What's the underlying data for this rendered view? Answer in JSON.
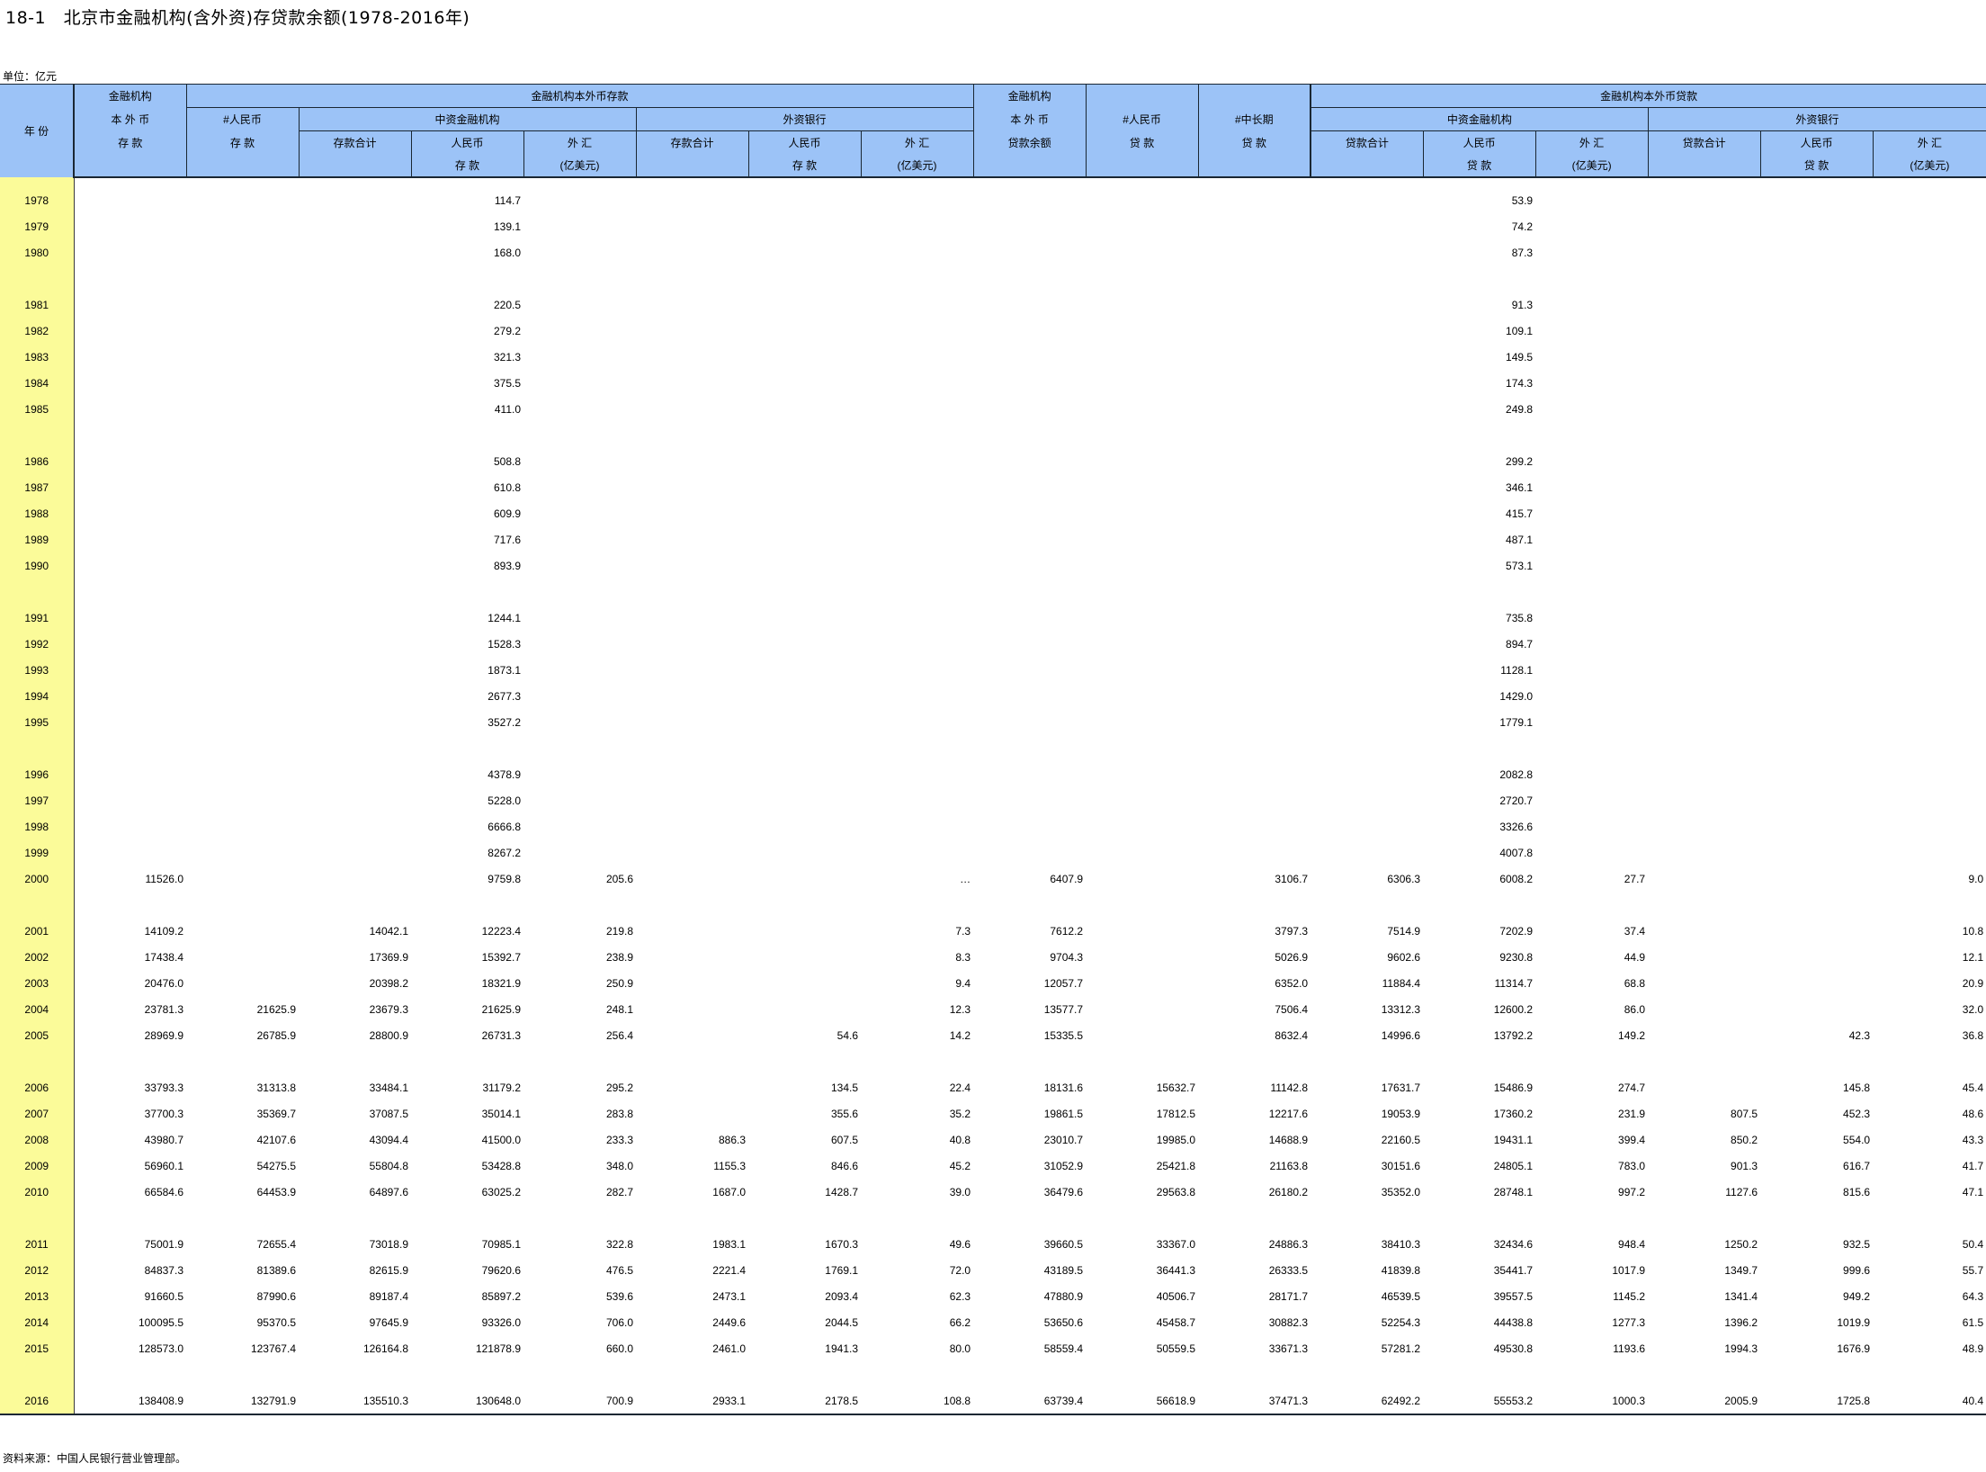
{
  "title": "18-1　北京市金融机构(含外资)存贷款余额(1978-2016年)",
  "unit": "单位：亿元",
  "source": "资料来源：中国人民银行营业管理部。",
  "header": {
    "year": "年 份",
    "dep_fin_1": "金融机构",
    "dep_fin_2": "本 外 币",
    "dep_fin_3": "存 款",
    "dep_group": "金融机构本外币存款",
    "dep_rmb_1": "#人民币",
    "dep_rmb_2": "存 款",
    "dep_domestic": "中资金融机构",
    "dep_foreign": "外资银行",
    "dep_total": "存款合计",
    "dep_rmb_dep_1": "人民币",
    "dep_rmb_dep_2": "存 款",
    "dep_fx_1": "外 汇",
    "dep_fx_2": "(亿美元)",
    "dep_f_total": "存款合计",
    "dep_f_rmb_1": "人民币",
    "dep_f_rmb_2": "存 款",
    "dep_f_fx_1": "外 汇",
    "dep_f_fx_2": "(亿美元)",
    "loan_fin_1": "金融机构",
    "loan_fin_2": "本 外 币",
    "loan_fin_3": "贷款余额",
    "loan_rmb_1": "#人民币",
    "loan_rmb_2": "贷 款",
    "loan_mid_1": "#中长期",
    "loan_mid_2": "贷 款",
    "loan_group": "金融机构本外币贷款",
    "loan_domestic": "中资金融机构",
    "loan_foreign": "外资银行",
    "loan_total": "贷款合计",
    "loan_rmb_loan_1": "人民币",
    "loan_rmb_loan_2": "贷 款",
    "loan_fx_1": "外 汇",
    "loan_fx_2": "(亿美元)",
    "loan_f_total": "贷款合计",
    "loan_f_rmb_1": "人民币",
    "loan_f_rmb_2": "贷 款",
    "loan_f_fx_1": "外 汇",
    "loan_f_fx_2": "(亿美元)"
  },
  "rows": [
    [
      "1978",
      "",
      "",
      "",
      "114.7",
      "",
      "",
      "",
      "",
      "",
      "",
      "",
      "",
      "53.9",
      "",
      "",
      "",
      ""
    ],
    [
      "1979",
      "",
      "",
      "",
      "139.1",
      "",
      "",
      "",
      "",
      "",
      "",
      "",
      "",
      "74.2",
      "",
      "",
      "",
      ""
    ],
    [
      "1980",
      "",
      "",
      "",
      "168.0",
      "",
      "",
      "",
      "",
      "",
      "",
      "",
      "",
      "87.3",
      "",
      "",
      "",
      ""
    ],
    [
      "1981",
      "",
      "",
      "",
      "220.5",
      "",
      "",
      "",
      "",
      "",
      "",
      "",
      "",
      "91.3",
      "",
      "",
      "",
      ""
    ],
    [
      "1982",
      "",
      "",
      "",
      "279.2",
      "",
      "",
      "",
      "",
      "",
      "",
      "",
      "",
      "109.1",
      "",
      "",
      "",
      ""
    ],
    [
      "1983",
      "",
      "",
      "",
      "321.3",
      "",
      "",
      "",
      "",
      "",
      "",
      "",
      "",
      "149.5",
      "",
      "",
      "",
      ""
    ],
    [
      "1984",
      "",
      "",
      "",
      "375.5",
      "",
      "",
      "",
      "",
      "",
      "",
      "",
      "",
      "174.3",
      "",
      "",
      "",
      ""
    ],
    [
      "1985",
      "",
      "",
      "",
      "411.0",
      "",
      "",
      "",
      "",
      "",
      "",
      "",
      "",
      "249.8",
      "",
      "",
      "",
      ""
    ],
    [
      "1986",
      "",
      "",
      "",
      "508.8",
      "",
      "",
      "",
      "",
      "",
      "",
      "",
      "",
      "299.2",
      "",
      "",
      "",
      ""
    ],
    [
      "1987",
      "",
      "",
      "",
      "610.8",
      "",
      "",
      "",
      "",
      "",
      "",
      "",
      "",
      "346.1",
      "",
      "",
      "",
      ""
    ],
    [
      "1988",
      "",
      "",
      "",
      "609.9",
      "",
      "",
      "",
      "",
      "",
      "",
      "",
      "",
      "415.7",
      "",
      "",
      "",
      ""
    ],
    [
      "1989",
      "",
      "",
      "",
      "717.6",
      "",
      "",
      "",
      "",
      "",
      "",
      "",
      "",
      "487.1",
      "",
      "",
      "",
      ""
    ],
    [
      "1990",
      "",
      "",
      "",
      "893.9",
      "",
      "",
      "",
      "",
      "",
      "",
      "",
      "",
      "573.1",
      "",
      "",
      "",
      ""
    ],
    [
      "1991",
      "",
      "",
      "",
      "1244.1",
      "",
      "",
      "",
      "",
      "",
      "",
      "",
      "",
      "735.8",
      "",
      "",
      "",
      ""
    ],
    [
      "1992",
      "",
      "",
      "",
      "1528.3",
      "",
      "",
      "",
      "",
      "",
      "",
      "",
      "",
      "894.7",
      "",
      "",
      "",
      ""
    ],
    [
      "1993",
      "",
      "",
      "",
      "1873.1",
      "",
      "",
      "",
      "",
      "",
      "",
      "",
      "",
      "1128.1",
      "",
      "",
      "",
      ""
    ],
    [
      "1994",
      "",
      "",
      "",
      "2677.3",
      "",
      "",
      "",
      "",
      "",
      "",
      "",
      "",
      "1429.0",
      "",
      "",
      "",
      ""
    ],
    [
      "1995",
      "",
      "",
      "",
      "3527.2",
      "",
      "",
      "",
      "",
      "",
      "",
      "",
      "",
      "1779.1",
      "",
      "",
      "",
      ""
    ],
    [
      "1996",
      "",
      "",
      "",
      "4378.9",
      "",
      "",
      "",
      "",
      "",
      "",
      "",
      "",
      "2082.8",
      "",
      "",
      "",
      ""
    ],
    [
      "1997",
      "",
      "",
      "",
      "5228.0",
      "",
      "",
      "",
      "",
      "",
      "",
      "",
      "",
      "2720.7",
      "",
      "",
      "",
      ""
    ],
    [
      "1998",
      "",
      "",
      "",
      "6666.8",
      "",
      "",
      "",
      "",
      "",
      "",
      "",
      "",
      "3326.6",
      "",
      "",
      "",
      ""
    ],
    [
      "1999",
      "",
      "",
      "",
      "8267.2",
      "",
      "",
      "",
      "",
      "",
      "",
      "",
      "",
      "4007.8",
      "",
      "",
      "",
      ""
    ],
    [
      "2000",
      "11526.0",
      "",
      "",
      "9759.8",
      "205.6",
      "",
      "",
      "…",
      "6407.9",
      "",
      "3106.7",
      "6306.3",
      "6008.2",
      "27.7",
      "",
      "",
      "9.0"
    ],
    [
      "2001",
      "14109.2",
      "",
      "14042.1",
      "12223.4",
      "219.8",
      "",
      "",
      "7.3",
      "7612.2",
      "",
      "3797.3",
      "7514.9",
      "7202.9",
      "37.4",
      "",
      "",
      "10.8"
    ],
    [
      "2002",
      "17438.4",
      "",
      "17369.9",
      "15392.7",
      "238.9",
      "",
      "",
      "8.3",
      "9704.3",
      "",
      "5026.9",
      "9602.6",
      "9230.8",
      "44.9",
      "",
      "",
      "12.1"
    ],
    [
      "2003",
      "20476.0",
      "",
      "20398.2",
      "18321.9",
      "250.9",
      "",
      "",
      "9.4",
      "12057.7",
      "",
      "6352.0",
      "11884.4",
      "11314.7",
      "68.8",
      "",
      "",
      "20.9"
    ],
    [
      "2004",
      "23781.3",
      "21625.9",
      "23679.3",
      "21625.9",
      "248.1",
      "",
      "",
      "12.3",
      "13577.7",
      "",
      "7506.4",
      "13312.3",
      "12600.2",
      "86.0",
      "",
      "",
      "32.0"
    ],
    [
      "2005",
      "28969.9",
      "26785.9",
      "28800.9",
      "26731.3",
      "256.4",
      "",
      "54.6",
      "14.2",
      "15335.5",
      "",
      "8632.4",
      "14996.6",
      "13792.2",
      "149.2",
      "",
      "42.3",
      "36.8"
    ],
    [
      "2006",
      "33793.3",
      "31313.8",
      "33484.1",
      "31179.2",
      "295.2",
      "",
      "134.5",
      "22.4",
      "18131.6",
      "15632.7",
      "11142.8",
      "17631.7",
      "15486.9",
      "274.7",
      "",
      "145.8",
      "45.4"
    ],
    [
      "2007",
      "37700.3",
      "35369.7",
      "37087.5",
      "35014.1",
      "283.8",
      "",
      "355.6",
      "35.2",
      "19861.5",
      "17812.5",
      "12217.6",
      "19053.9",
      "17360.2",
      "231.9",
      "807.5",
      "452.3",
      "48.6"
    ],
    [
      "2008",
      "43980.7",
      "42107.6",
      "43094.4",
      "41500.0",
      "233.3",
      "886.3",
      "607.5",
      "40.8",
      "23010.7",
      "19985.0",
      "14688.9",
      "22160.5",
      "19431.1",
      "399.4",
      "850.2",
      "554.0",
      "43.3"
    ],
    [
      "2009",
      "56960.1",
      "54275.5",
      "55804.8",
      "53428.8",
      "348.0",
      "1155.3",
      "846.6",
      "45.2",
      "31052.9",
      "25421.8",
      "21163.8",
      "30151.6",
      "24805.1",
      "783.0",
      "901.3",
      "616.7",
      "41.7"
    ],
    [
      "2010",
      "66584.6",
      "64453.9",
      "64897.6",
      "63025.2",
      "282.7",
      "1687.0",
      "1428.7",
      "39.0",
      "36479.6",
      "29563.8",
      "26180.2",
      "35352.0",
      "28748.1",
      "997.2",
      "1127.6",
      "815.6",
      "47.1"
    ],
    [
      "2011",
      "75001.9",
      "72655.4",
      "73018.9",
      "70985.1",
      "322.8",
      "1983.1",
      "1670.3",
      "49.6",
      "39660.5",
      "33367.0",
      "24886.3",
      "38410.3",
      "32434.6",
      "948.4",
      "1250.2",
      "932.5",
      "50.4"
    ],
    [
      "2012",
      "84837.3",
      "81389.6",
      "82615.9",
      "79620.6",
      "476.5",
      "2221.4",
      "1769.1",
      "72.0",
      "43189.5",
      "36441.3",
      "26333.5",
      "41839.8",
      "35441.7",
      "1017.9",
      "1349.7",
      "999.6",
      "55.7"
    ],
    [
      "2013",
      "91660.5",
      "87990.6",
      "89187.4",
      "85897.2",
      "539.6",
      "2473.1",
      "2093.4",
      "62.3",
      "47880.9",
      "40506.7",
      "28171.7",
      "46539.5",
      "39557.5",
      "1145.2",
      "1341.4",
      "949.2",
      "64.3"
    ],
    [
      "2014",
      "100095.5",
      "95370.5",
      "97645.9",
      "93326.0",
      "706.0",
      "2449.6",
      "2044.5",
      "66.2",
      "53650.6",
      "45458.7",
      "30882.3",
      "52254.3",
      "44438.8",
      "1277.3",
      "1396.2",
      "1019.9",
      "61.5"
    ],
    [
      "2015",
      "128573.0",
      "123767.4",
      "126164.8",
      "121878.9",
      "660.0",
      "2461.0",
      "1941.3",
      "80.0",
      "58559.4",
      "50559.5",
      "33671.3",
      "57281.2",
      "49530.8",
      "1193.6",
      "1994.3",
      "1676.9",
      "48.9"
    ],
    [
      "2016",
      "138408.9",
      "132791.9",
      "135510.3",
      "130648.0",
      "700.9",
      "2933.1",
      "2178.5",
      "108.8",
      "63739.4",
      "56618.9",
      "37471.3",
      "62492.2",
      "55553.2",
      "1000.3",
      "2005.9",
      "1725.8",
      "40.4"
    ]
  ]
}
